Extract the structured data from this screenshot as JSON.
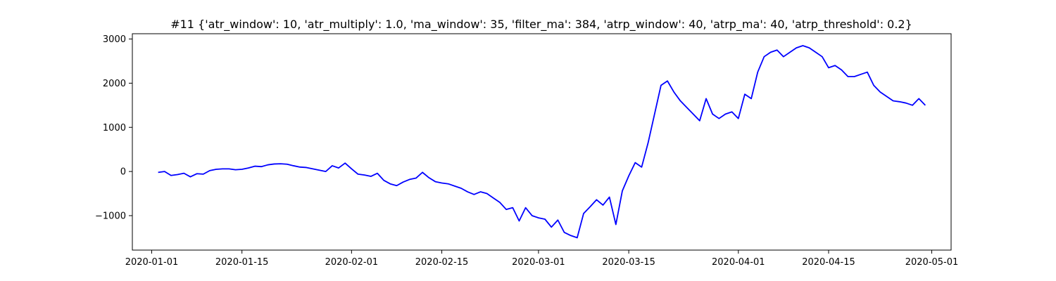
{
  "chart_data": {
    "type": "line",
    "title": "#11 {'atr_window': 10, 'atr_multiply': 1.0, 'ma_window': 35, 'filter_ma': 384, 'atrp_window': 40, 'atrp_ma': 40, 'atrp_threshold': 0.2}",
    "xlabel": "",
    "ylabel": "",
    "x_axis_type": "date",
    "xlim": [
      "2019-12-29",
      "2020-05-04"
    ],
    "ylim": [
      -1780,
      3120
    ],
    "grid": false,
    "legend": "none",
    "x_ticks": [
      "2020-01-01",
      "2020-01-15",
      "2020-02-01",
      "2020-02-15",
      "2020-03-01",
      "2020-03-15",
      "2020-04-01",
      "2020-04-15",
      "2020-05-01"
    ],
    "y_ticks": [
      -1000,
      0,
      1000,
      2000,
      3000
    ],
    "y_tick_labels": [
      "−1000",
      "0",
      "1000",
      "2000",
      "3000"
    ],
    "series": [
      {
        "color": "#0000ff",
        "points": [
          [
            "2020-01-02",
            -20
          ],
          [
            "2020-01-03",
            0
          ],
          [
            "2020-01-04",
            -90
          ],
          [
            "2020-01-05",
            -70
          ],
          [
            "2020-01-06",
            -40
          ],
          [
            "2020-01-07",
            -120
          ],
          [
            "2020-01-08",
            -50
          ],
          [
            "2020-01-09",
            -60
          ],
          [
            "2020-01-10",
            20
          ],
          [
            "2020-01-11",
            50
          ],
          [
            "2020-01-12",
            60
          ],
          [
            "2020-01-13",
            60
          ],
          [
            "2020-01-14",
            40
          ],
          [
            "2020-01-15",
            50
          ],
          [
            "2020-01-16",
            80
          ],
          [
            "2020-01-17",
            120
          ],
          [
            "2020-01-18",
            110
          ],
          [
            "2020-01-19",
            150
          ],
          [
            "2020-01-20",
            170
          ],
          [
            "2020-01-21",
            175
          ],
          [
            "2020-01-22",
            165
          ],
          [
            "2020-01-23",
            130
          ],
          [
            "2020-01-24",
            100
          ],
          [
            "2020-01-25",
            90
          ],
          [
            "2020-01-26",
            60
          ],
          [
            "2020-01-27",
            30
          ],
          [
            "2020-01-28",
            0
          ],
          [
            "2020-01-29",
            130
          ],
          [
            "2020-01-30",
            80
          ],
          [
            "2020-01-31",
            190
          ],
          [
            "2020-02-01",
            60
          ],
          [
            "2020-02-02",
            -60
          ],
          [
            "2020-02-03",
            -80
          ],
          [
            "2020-02-04",
            -110
          ],
          [
            "2020-02-05",
            -40
          ],
          [
            "2020-02-06",
            -200
          ],
          [
            "2020-02-07",
            -280
          ],
          [
            "2020-02-08",
            -320
          ],
          [
            "2020-02-09",
            -240
          ],
          [
            "2020-02-10",
            -180
          ],
          [
            "2020-02-11",
            -150
          ],
          [
            "2020-02-12",
            -20
          ],
          [
            "2020-02-13",
            -140
          ],
          [
            "2020-02-14",
            -230
          ],
          [
            "2020-02-15",
            -260
          ],
          [
            "2020-02-16",
            -280
          ],
          [
            "2020-02-17",
            -330
          ],
          [
            "2020-02-18",
            -380
          ],
          [
            "2020-02-19",
            -460
          ],
          [
            "2020-02-20",
            -520
          ],
          [
            "2020-02-21",
            -460
          ],
          [
            "2020-02-22",
            -500
          ],
          [
            "2020-02-23",
            -600
          ],
          [
            "2020-02-24",
            -700
          ],
          [
            "2020-02-25",
            -860
          ],
          [
            "2020-02-26",
            -820
          ],
          [
            "2020-02-27",
            -1120
          ],
          [
            "2020-02-28",
            -820
          ],
          [
            "2020-02-29",
            -1000
          ],
          [
            "2020-03-01",
            -1050
          ],
          [
            "2020-03-02",
            -1080
          ],
          [
            "2020-03-03",
            -1260
          ],
          [
            "2020-03-04",
            -1100
          ],
          [
            "2020-03-05",
            -1380
          ],
          [
            "2020-03-06",
            -1450
          ],
          [
            "2020-03-07",
            -1500
          ],
          [
            "2020-03-08",
            -950
          ],
          [
            "2020-03-09",
            -800
          ],
          [
            "2020-03-10",
            -640
          ],
          [
            "2020-03-11",
            -760
          ],
          [
            "2020-03-12",
            -580
          ],
          [
            "2020-03-13",
            -1200
          ],
          [
            "2020-03-14",
            -440
          ],
          [
            "2020-03-15",
            -100
          ],
          [
            "2020-03-16",
            200
          ],
          [
            "2020-03-17",
            100
          ],
          [
            "2020-03-18",
            650
          ],
          [
            "2020-03-19",
            1300
          ],
          [
            "2020-03-20",
            1950
          ],
          [
            "2020-03-21",
            2050
          ],
          [
            "2020-03-22",
            1800
          ],
          [
            "2020-03-23",
            1600
          ],
          [
            "2020-03-24",
            1450
          ],
          [
            "2020-03-25",
            1300
          ],
          [
            "2020-03-26",
            1150
          ],
          [
            "2020-03-27",
            1650
          ],
          [
            "2020-03-28",
            1300
          ],
          [
            "2020-03-29",
            1200
          ],
          [
            "2020-03-30",
            1300
          ],
          [
            "2020-03-31",
            1350
          ],
          [
            "2020-04-01",
            1200
          ],
          [
            "2020-04-02",
            1750
          ],
          [
            "2020-04-03",
            1650
          ],
          [
            "2020-04-04",
            2250
          ],
          [
            "2020-04-05",
            2600
          ],
          [
            "2020-04-06",
            2700
          ],
          [
            "2020-04-07",
            2750
          ],
          [
            "2020-04-08",
            2600
          ],
          [
            "2020-04-09",
            2700
          ],
          [
            "2020-04-10",
            2800
          ],
          [
            "2020-04-11",
            2850
          ],
          [
            "2020-04-12",
            2800
          ],
          [
            "2020-04-13",
            2700
          ],
          [
            "2020-04-14",
            2600
          ],
          [
            "2020-04-15",
            2350
          ],
          [
            "2020-04-16",
            2400
          ],
          [
            "2020-04-17",
            2300
          ],
          [
            "2020-04-18",
            2150
          ],
          [
            "2020-04-19",
            2150
          ],
          [
            "2020-04-20",
            2200
          ],
          [
            "2020-04-21",
            2250
          ],
          [
            "2020-04-22",
            1950
          ],
          [
            "2020-04-23",
            1800
          ],
          [
            "2020-04-24",
            1700
          ],
          [
            "2020-04-25",
            1600
          ],
          [
            "2020-04-26",
            1580
          ],
          [
            "2020-04-27",
            1550
          ],
          [
            "2020-04-28",
            1500
          ],
          [
            "2020-04-29",
            1650
          ],
          [
            "2020-04-30",
            1500
          ]
        ]
      }
    ]
  }
}
